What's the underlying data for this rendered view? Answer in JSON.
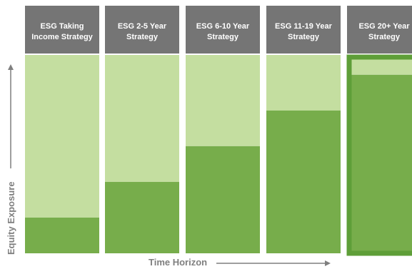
{
  "chart_data": {
    "type": "bar",
    "title": "",
    "xlabel": "Time Horizon",
    "ylabel": "Equity Exposure",
    "stacked": true,
    "ylim": [
      0,
      100
    ],
    "categories": [
      "ESG Taking Income Strategy",
      "ESG 2-5 Year Strategy",
      "ESG 6-10 Year Strategy",
      "ESG 11-19 Year Strategy",
      "ESG 20+ Year Strategy"
    ],
    "category_label_lines": [
      [
        "ESG Taking",
        "Income Strategy"
      ],
      [
        "ESG 2-5 Year",
        "Strategy"
      ],
      [
        "ESG 6-10 Year",
        "Strategy"
      ],
      [
        "ESG 11-19 Year",
        "Strategy"
      ],
      [
        "ESG 20+ Year",
        "Strategy"
      ]
    ],
    "series": [
      {
        "values": [
          18,
          36,
          54,
          72,
          90
        ]
      },
      {
        "values": [
          82,
          64,
          46,
          28,
          10
        ]
      }
    ],
    "highlighted_category": "ESG 20+ Year Strategy",
    "grid": false,
    "colors": {
      "equity": "#77ad4b",
      "remainder": "#c4dea0",
      "header": "#757575",
      "highlight_border": "#5e9e38",
      "axis_text": "#7f7f7f"
    }
  }
}
